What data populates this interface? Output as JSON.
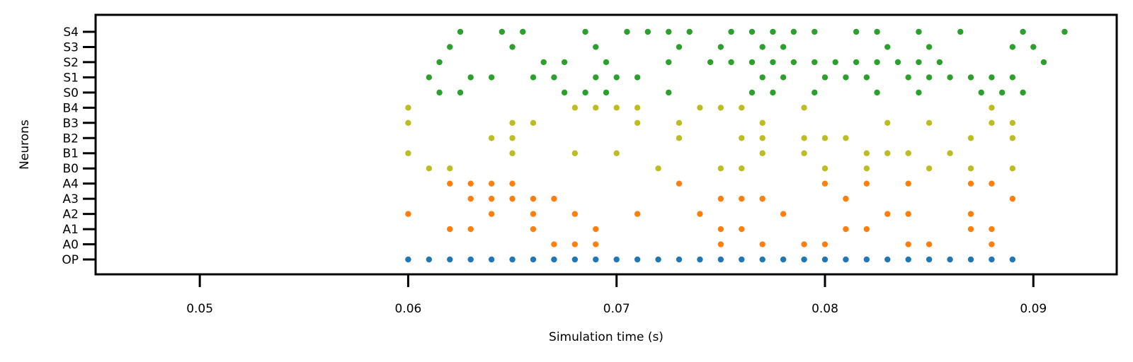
{
  "chart_data": {
    "type": "scatter",
    "title": "",
    "xlabel": "Simulation time (s)",
    "ylabel": "Neurons",
    "xlim": [
      0.045,
      0.094
    ],
    "xticks": [
      0.05,
      0.06,
      0.07,
      0.08,
      0.09
    ],
    "xtick_labels": [
      "0.05",
      "0.06",
      "0.07",
      "0.08",
      "0.09"
    ],
    "ytick_labels": [
      "OP",
      "A0",
      "A1",
      "A2",
      "A3",
      "A4",
      "B0",
      "B1",
      "B2",
      "B3",
      "B4",
      "S0",
      "S1",
      "S2",
      "S3",
      "S4"
    ],
    "grid": false,
    "colors": {
      "OP": "#1f77b4",
      "A": "#ff7f0e",
      "B": "#bcbd22",
      "S": "#2ca02c"
    },
    "series": [
      {
        "neuron": "OP",
        "group": "OP",
        "spike_times": [
          0.06,
          0.061,
          0.062,
          0.063,
          0.064,
          0.065,
          0.066,
          0.067,
          0.068,
          0.069,
          0.07,
          0.071,
          0.072,
          0.073,
          0.074,
          0.075,
          0.076,
          0.077,
          0.078,
          0.079,
          0.08,
          0.081,
          0.082,
          0.083,
          0.084,
          0.085,
          0.086,
          0.087,
          0.088,
          0.089
        ]
      },
      {
        "neuron": "A0",
        "group": "A",
        "spike_times": [
          0.067,
          0.068,
          0.069,
          0.075,
          0.077,
          0.079,
          0.08,
          0.084,
          0.085,
          0.088
        ]
      },
      {
        "neuron": "A1",
        "group": "A",
        "spike_times": [
          0.062,
          0.063,
          0.066,
          0.069,
          0.075,
          0.076,
          0.081,
          0.082,
          0.087,
          0.088
        ]
      },
      {
        "neuron": "A2",
        "group": "A",
        "spike_times": [
          0.06,
          0.064,
          0.066,
          0.068,
          0.071,
          0.074,
          0.078,
          0.083,
          0.084,
          0.087
        ]
      },
      {
        "neuron": "A3",
        "group": "A",
        "spike_times": [
          0.063,
          0.064,
          0.065,
          0.066,
          0.067,
          0.075,
          0.076,
          0.077,
          0.081,
          0.089
        ]
      },
      {
        "neuron": "A4",
        "group": "A",
        "spike_times": [
          0.062,
          0.063,
          0.064,
          0.065,
          0.073,
          0.08,
          0.082,
          0.084,
          0.087,
          0.088
        ]
      },
      {
        "neuron": "B0",
        "group": "B",
        "spike_times": [
          0.061,
          0.062,
          0.072,
          0.075,
          0.076,
          0.08,
          0.082,
          0.085,
          0.087,
          0.089
        ]
      },
      {
        "neuron": "B1",
        "group": "B",
        "spike_times": [
          0.06,
          0.065,
          0.068,
          0.07,
          0.077,
          0.079,
          0.082,
          0.083,
          0.084,
          0.086
        ]
      },
      {
        "neuron": "B2",
        "group": "B",
        "spike_times": [
          0.064,
          0.065,
          0.073,
          0.076,
          0.077,
          0.079,
          0.08,
          0.081,
          0.087,
          0.089
        ]
      },
      {
        "neuron": "B3",
        "group": "B",
        "spike_times": [
          0.06,
          0.065,
          0.066,
          0.071,
          0.073,
          0.077,
          0.083,
          0.085,
          0.088,
          0.089
        ]
      },
      {
        "neuron": "B4",
        "group": "B",
        "spike_times": [
          0.06,
          0.068,
          0.069,
          0.07,
          0.071,
          0.074,
          0.075,
          0.076,
          0.079,
          0.088
        ]
      },
      {
        "neuron": "S0",
        "group": "S",
        "spike_times": [
          0.0615,
          0.0625,
          0.0675,
          0.0685,
          0.0695,
          0.0725,
          0.0765,
          0.0775,
          0.0795,
          0.0825,
          0.0845,
          0.0875,
          0.0885,
          0.0895
        ]
      },
      {
        "neuron": "S1",
        "group": "S",
        "spike_times": [
          0.061,
          0.063,
          0.064,
          0.066,
          0.067,
          0.069,
          0.07,
          0.071,
          0.077,
          0.078,
          0.08,
          0.081,
          0.082,
          0.084,
          0.085,
          0.086,
          0.087,
          0.088,
          0.089
        ]
      },
      {
        "neuron": "S2",
        "group": "S",
        "spike_times": [
          0.0615,
          0.0665,
          0.0675,
          0.0695,
          0.0725,
          0.0745,
          0.0755,
          0.0765,
          0.0775,
          0.0785,
          0.0795,
          0.0805,
          0.0815,
          0.0825,
          0.0835,
          0.0845,
          0.0855,
          0.0905
        ]
      },
      {
        "neuron": "S3",
        "group": "S",
        "spike_times": [
          0.062,
          0.065,
          0.069,
          0.073,
          0.075,
          0.077,
          0.078,
          0.083,
          0.085,
          0.089,
          0.09
        ]
      },
      {
        "neuron": "S4",
        "group": "S",
        "spike_times": [
          0.0625,
          0.0645,
          0.0655,
          0.0685,
          0.0705,
          0.0715,
          0.0725,
          0.0735,
          0.0755,
          0.0765,
          0.0775,
          0.0785,
          0.0795,
          0.0815,
          0.0825,
          0.0845,
          0.0865,
          0.0895,
          0.0915
        ]
      }
    ]
  }
}
